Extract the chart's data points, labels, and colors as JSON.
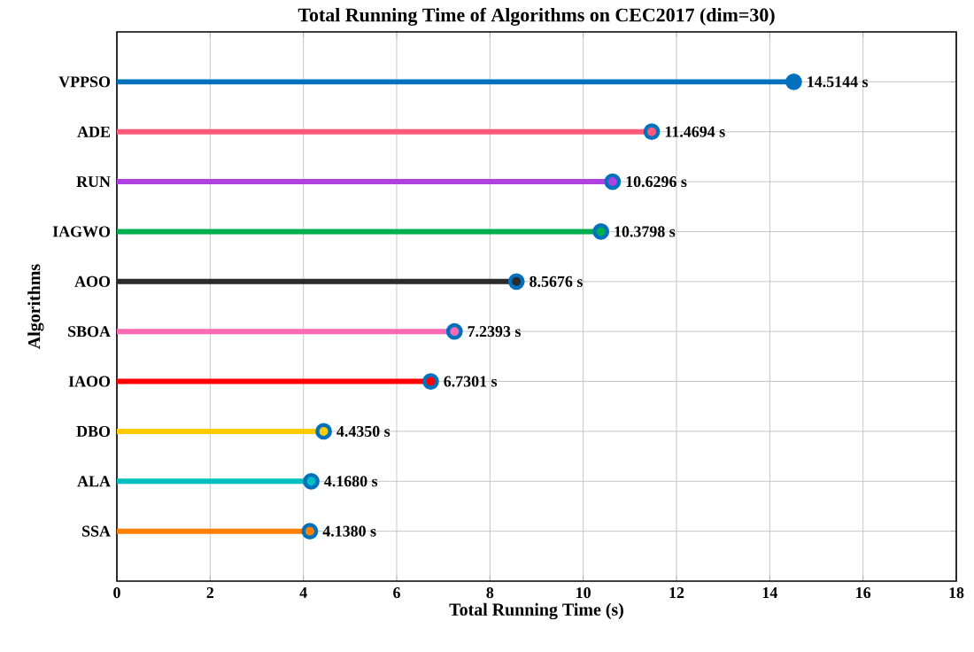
{
  "chart_data": {
    "type": "lollipop",
    "orientation": "horizontal",
    "title": "Total Running Time of Algorithms on CEC2017 (dim=30)",
    "xlabel": "Total Running Time (s)",
    "ylabel": "Algorithms",
    "categories": [
      "VPPSO",
      "ADE",
      "RUN",
      "IAGWO",
      "AOO",
      "SBOA",
      "IAOO",
      "DBO",
      "ALA",
      "SSA"
    ],
    "values": [
      14.5144,
      11.4694,
      10.6296,
      10.3798,
      8.5676,
      7.2393,
      6.7301,
      4.435,
      4.168,
      4.138
    ],
    "value_labels": [
      "14.5144 s",
      "11.4694 s",
      "10.6296 s",
      "10.3798 s",
      "8.5676 s",
      "7.2393 s",
      "6.7301 s",
      "4.4350 s",
      "4.1680 s",
      "4.1380 s"
    ],
    "colors": [
      "#0072bd",
      "#ff5a78",
      "#b040e0",
      "#00b050",
      "#2b2b2b",
      "#ff69b4",
      "#ff0000",
      "#ffcc00",
      "#00bfbf",
      "#ff8000"
    ],
    "xlim": [
      0,
      18
    ],
    "xticks": [
      0,
      2,
      4,
      6,
      8,
      10,
      12,
      14,
      16,
      18
    ],
    "grid": true,
    "marker": "circle"
  }
}
